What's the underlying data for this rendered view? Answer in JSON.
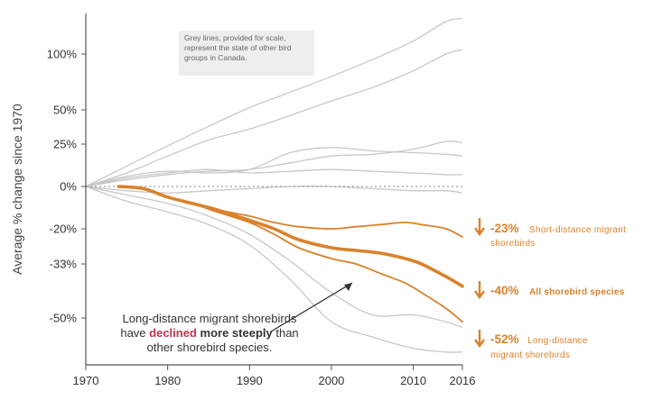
{
  "chart_data": {
    "type": "line",
    "title": "",
    "xlabel": "",
    "ylabel": "Average % change since 1970",
    "xlim": [
      1970,
      2016
    ],
    "x_ticks": [
      "1970",
      "1980",
      "1990",
      "2000",
      "2010",
      "2016"
    ],
    "y_ticks": [
      {
        "value": 100,
        "label": "100%"
      },
      {
        "value": 50,
        "label": "50%"
      },
      {
        "value": 25,
        "label": "25%"
      },
      {
        "value": 0,
        "label": "0%"
      },
      {
        "value": -20,
        "label": "-20%"
      },
      {
        "value": -33,
        "label": "-33%"
      },
      {
        "value": -50,
        "label": "-50%"
      }
    ],
    "ylim": [
      -70,
      135
    ],
    "grid": false,
    "baseline": {
      "value": 0,
      "style": "dashed"
    },
    "grey_note": "Grey lines, provided for scale, represent the state of other bird groups in Canada.",
    "callout": {
      "line1": "Long-distance migrant shorebirds",
      "line2_pre": "have ",
      "line2_emph": "declined",
      "line2_bold": " more steeply",
      "line2_post": " than",
      "line3": "other shorebird species."
    },
    "colors": {
      "series": "#d9822b",
      "grey": "#c8c8c8",
      "emphasis": "#c0334e",
      "axis": "#555555"
    },
    "series": [
      {
        "name": "Short-distance migrant shorebirds",
        "label_pct": "-23%",
        "label_words": [
          "Short-distance migrant",
          "shorebirds"
        ],
        "emphasis": "normal",
        "x": [
          1974,
          1977,
          1980,
          1983,
          1986,
          1990,
          1993,
          1996,
          2000,
          2003,
          2006,
          2009,
          2011,
          2014,
          2016
        ],
        "y": [
          0,
          -1,
          -5,
          -8,
          -11,
          -14,
          -17,
          -19,
          -20,
          -19,
          -18,
          -17,
          -18,
          -20,
          -23
        ]
      },
      {
        "name": "All shorebird species",
        "label_pct": "-40%",
        "label_words": [
          "All shorebird species"
        ],
        "emphasis": "bold",
        "x": [
          1974,
          1977,
          1980,
          1983,
          1986,
          1990,
          1993,
          1996,
          2000,
          2003,
          2006,
          2009,
          2011,
          2014,
          2016
        ],
        "y": [
          0,
          -1,
          -5,
          -8,
          -11,
          -16,
          -20,
          -24,
          -27,
          -28,
          -29,
          -31,
          -33,
          -37,
          -40
        ]
      },
      {
        "name": "Long-distance migrant shorebirds",
        "label_pct": "-52%",
        "label_words": [
          "Long-distance",
          "migrant shorebirds"
        ],
        "emphasis": "normal",
        "x": [
          1974,
          1977,
          1980,
          1983,
          1986,
          1990,
          1993,
          1996,
          2000,
          2003,
          2006,
          2009,
          2011,
          2014,
          2016
        ],
        "y": [
          0,
          -1,
          -5,
          -8,
          -12,
          -17,
          -22,
          -27,
          -31,
          -33,
          -36,
          -39,
          -42,
          -47,
          -52
        ]
      }
    ],
    "grey_series": [
      {
        "x": [
          1970,
          1975,
          1980,
          1985,
          1990,
          1995,
          2000,
          2005,
          2010,
          2014,
          2016
        ],
        "y": [
          0,
          12,
          24,
          38,
          52,
          66,
          80,
          95,
          112,
          130,
          133
        ]
      },
      {
        "x": [
          1970,
          1975,
          1980,
          1985,
          1990,
          1995,
          2000,
          2005,
          2010,
          2014,
          2016
        ],
        "y": [
          0,
          8,
          18,
          28,
          36,
          46,
          58,
          70,
          85,
          100,
          104
        ]
      },
      {
        "x": [
          1970,
          1975,
          1980,
          1985,
          1990,
          1995,
          2000,
          2005,
          2010,
          2014,
          2016
        ],
        "y": [
          0,
          4,
          7,
          9,
          10,
          14,
          18,
          19,
          22,
          27,
          26
        ]
      },
      {
        "x": [
          1970,
          1975,
          1980,
          1985,
          1990,
          1995,
          2000,
          2005,
          2010,
          2014,
          2016
        ],
        "y": [
          0,
          6,
          9,
          8,
          10,
          20,
          23,
          21,
          20,
          19,
          18
        ]
      },
      {
        "x": [
          1970,
          1975,
          1980,
          1985,
          1990,
          1995,
          2000,
          2005,
          2010,
          2014,
          2016
        ],
        "y": [
          0,
          5,
          8,
          10,
          8,
          9,
          10,
          9,
          8,
          7,
          7
        ]
      },
      {
        "x": [
          1970,
          1975,
          1980,
          1985,
          1990,
          1995,
          2000,
          2005,
          2010,
          2014,
          2016
        ],
        "y": [
          0,
          -2,
          -3,
          -2,
          -1,
          0,
          0,
          -1,
          -2,
          -2,
          -3
        ]
      },
      {
        "x": [
          1970,
          1975,
          1980,
          1985,
          1990,
          1995,
          2000,
          2005,
          2010,
          2014,
          2016
        ],
        "y": [
          0,
          -4,
          -8,
          -14,
          -22,
          -32,
          -42,
          -49,
          -49,
          -52,
          -55
        ]
      },
      {
        "x": [
          1970,
          1975,
          1980,
          1985,
          1990,
          1995,
          2000,
          2005,
          2010,
          2014,
          2016
        ],
        "y": [
          0,
          -7,
          -12,
          -18,
          -26,
          -38,
          -52,
          -60,
          -66,
          -68,
          -68
        ]
      }
    ]
  }
}
